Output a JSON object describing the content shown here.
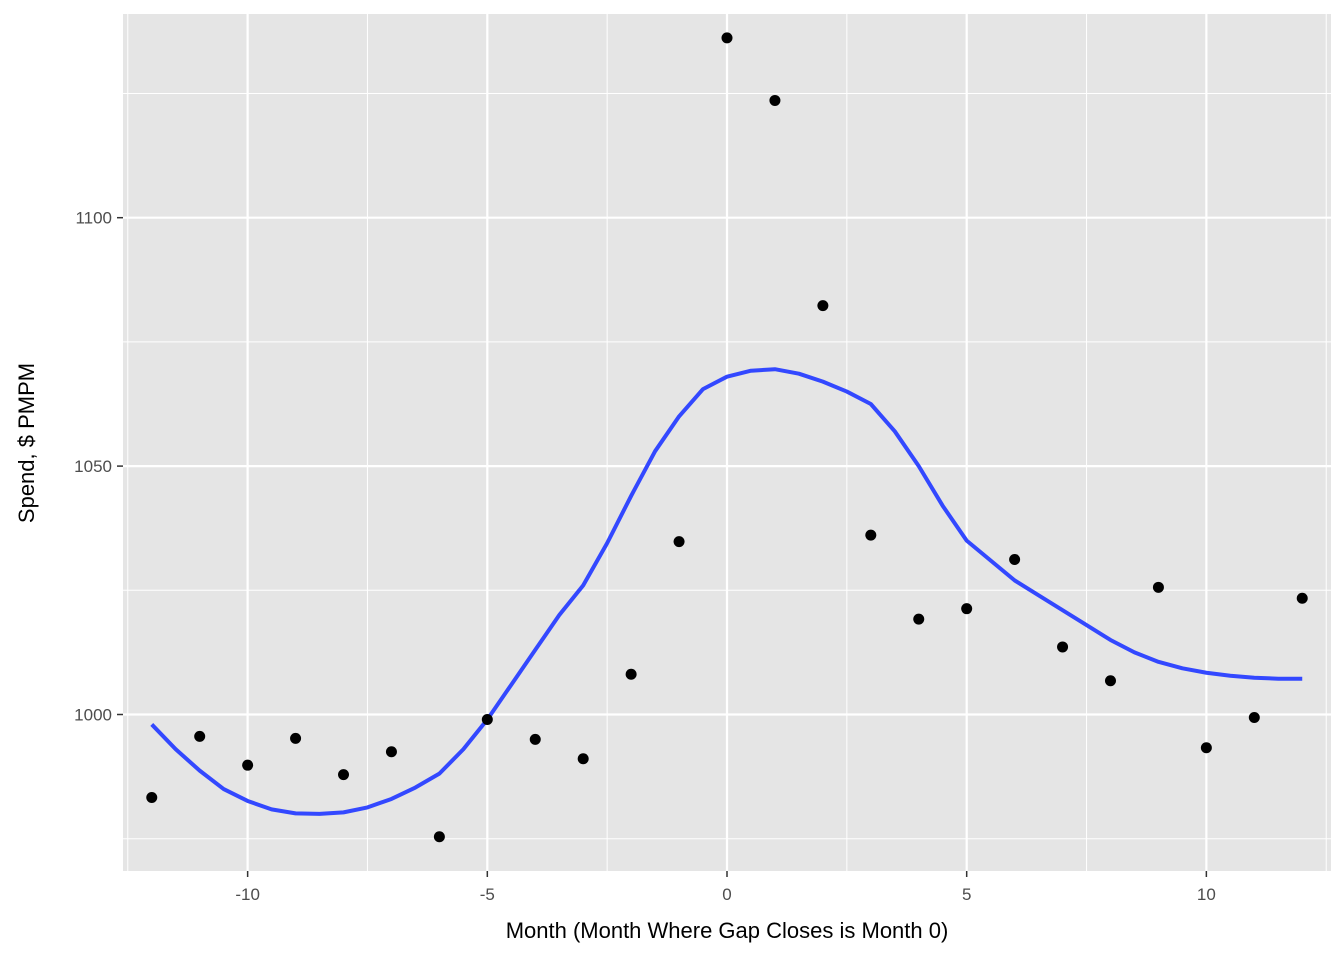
{
  "chart_data": {
    "type": "scatter",
    "title": "",
    "xlabel": "Month  (Month Where Gap Closes is Month 0)",
    "ylabel": "Spend, $ PMPM",
    "xlim": [
      -12.6,
      12.6
    ],
    "ylim": [
      968.5,
      1141
    ],
    "x_ticks": [
      -10,
      -5,
      0,
      5,
      10
    ],
    "x_tick_labels": [
      "-10",
      "-5",
      "0",
      "5",
      "10"
    ],
    "y_ticks": [
      1000,
      1050,
      1100
    ],
    "y_tick_labels": [
      "1000",
      "1050",
      "1100"
    ],
    "grid": true,
    "colors": {
      "panel_background": "#e5e5e5",
      "grid": "#ffffff",
      "points": "#000000",
      "smooth_line": "#3348ff",
      "tick_label": "#4d4d4d",
      "axis_title": "#000000"
    },
    "points": {
      "x": [
        -12,
        -11,
        -10,
        -9,
        -8,
        -7,
        -6,
        -5,
        -4,
        -3,
        -2,
        -1,
        0,
        1,
        2,
        3,
        4,
        5,
        6,
        7,
        8,
        9,
        10,
        11,
        12
      ],
      "y": [
        983.3,
        995.6,
        989.8,
        995.2,
        987.9,
        992.5,
        975.4,
        999.0,
        995.0,
        991.1,
        1008.1,
        1034.8,
        1136.2,
        1123.6,
        1082.3,
        1036.1,
        1019.2,
        1021.3,
        1031.2,
        1013.6,
        1006.8,
        1025.6,
        993.3,
        999.4,
        1023.4
      ]
    },
    "smooth": {
      "x": [
        -12,
        -11.5,
        -11,
        -10.5,
        -10,
        -9.5,
        -9,
        -8.5,
        -8,
        -7.5,
        -7,
        -6.5,
        -6,
        -5.5,
        -5,
        -4.5,
        -4,
        -3.5,
        -3,
        -2.5,
        -2,
        -1.5,
        -1,
        -0.5,
        0,
        0.5,
        1,
        1.5,
        2,
        2.5,
        3,
        3.5,
        4,
        4.5,
        5,
        5.5,
        6,
        6.5,
        7,
        7.5,
        8,
        8.5,
        9,
        9.5,
        10,
        10.5,
        11,
        11.5,
        12
      ],
      "y": [
        998.0,
        993.0,
        988.7,
        985.0,
        982.6,
        980.9,
        980.1,
        980.0,
        980.3,
        981.3,
        983.0,
        985.3,
        988.1,
        993.0,
        999.0,
        1006.0,
        1013.0,
        1020.0,
        1026.0,
        1034.5,
        1044.0,
        1053.0,
        1060.0,
        1065.5,
        1068.0,
        1069.2,
        1069.5,
        1068.6,
        1067.0,
        1065.0,
        1062.5,
        1057.0,
        1050.0,
        1042.0,
        1035.0,
        1031.0,
        1027.0,
        1024.0,
        1021.0,
        1018.0,
        1015.0,
        1012.5,
        1010.6,
        1009.3,
        1008.4,
        1007.8,
        1007.4,
        1007.2,
        1007.2
      ]
    }
  }
}
